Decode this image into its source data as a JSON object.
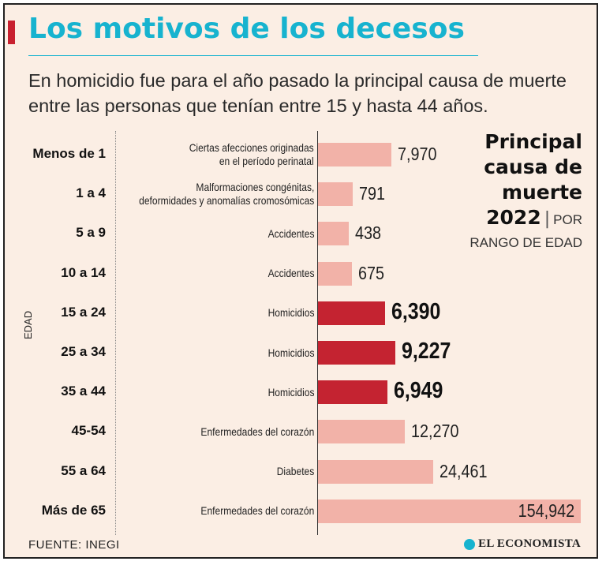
{
  "header": {
    "title": "Los motivos de los decesos",
    "subtitle": "En homicidio fue para el año pasado la principal causa de muerte entre las personas que tenían entre 15 y hasta 44 años."
  },
  "side_label": {
    "line1": "Principal",
    "line2": "causa de",
    "line3": "muerte",
    "year": "2022",
    "separator": "|",
    "por": "POR",
    "rango": "RANGO DE EDAD"
  },
  "axis_label": "EDAD",
  "colors": {
    "light_bar": "#f2b2a8",
    "highlight_bar": "#c42331",
    "title": "#17b3cf",
    "background": "#fbeee4"
  },
  "chart_data": {
    "type": "bar",
    "orientation": "horizontal",
    "title": "Principal causa de muerte 2022 por rango de edad",
    "ylabel": "EDAD",
    "rows": [
      {
        "age": "Menos de 1",
        "cause": [
          "Ciertas afecciones originadas",
          "en el período perinatal"
        ],
        "value": 7970,
        "label": "7,970",
        "highlight": false
      },
      {
        "age": "1 a 4",
        "cause": [
          "Malformaciones congénitas,",
          "deformidades y anomalías cromosómicas"
        ],
        "value": 791,
        "label": "791",
        "highlight": false
      },
      {
        "age": "5 a 9",
        "cause": [
          "Accidentes"
        ],
        "value": 438,
        "label": "438",
        "highlight": false
      },
      {
        "age": "10 a 14",
        "cause": [
          "Accidentes"
        ],
        "value": 675,
        "label": "675",
        "highlight": false
      },
      {
        "age": "15 a 24",
        "cause": [
          "Homicidios"
        ],
        "value": 6390,
        "label": "6,390",
        "highlight": true
      },
      {
        "age": "25 a 34",
        "cause": [
          "Homicidios"
        ],
        "value": 9227,
        "label": "9,227",
        "highlight": true
      },
      {
        "age": "35 a 44",
        "cause": [
          "Homicidios"
        ],
        "value": 6949,
        "label": "6,949",
        "highlight": true
      },
      {
        "age": "45-54",
        "cause": [
          "Enfermedades del corazón"
        ],
        "value": 12270,
        "label": "12,270",
        "highlight": false
      },
      {
        "age": "55 a 64",
        "cause": [
          "Diabetes"
        ],
        "value": 24461,
        "label": "24,461",
        "highlight": false
      },
      {
        "age": "Más de 65",
        "cause": [
          "Enfermedades del corazón"
        ],
        "value": 154942,
        "label": "154,942",
        "highlight": false
      }
    ]
  },
  "footer": {
    "source": "FUENTE: INEGI",
    "logo": "EL ECONOMISTA"
  }
}
